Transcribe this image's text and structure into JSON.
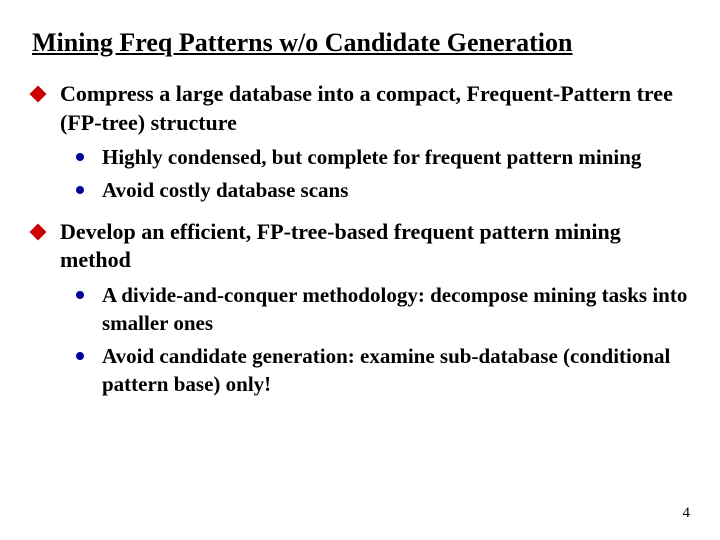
{
  "title": "Mining Freq Patterns w/o Candidate Generation",
  "bullets": [
    {
      "text": "Compress a large database into a compact, Frequent-Pattern tree (FP-tree) structure",
      "sub": [
        "Highly condensed, but complete for frequent pattern mining",
        "Avoid costly database scans"
      ]
    },
    {
      "text": "Develop an efficient, FP-tree-based frequent pattern mining method",
      "sub": [
        "A divide-and-conquer methodology: decompose mining tasks into smaller ones",
        "Avoid candidate generation: examine sub-database (conditional pattern base) only!"
      ]
    }
  ],
  "page_number": "4",
  "colors": {
    "diamond": "#cc0000",
    "dot": "#000099",
    "text": "#000000",
    "background": "#ffffff"
  },
  "fonts": {
    "title_size": 26,
    "level1_size": 22,
    "level2_size": 21,
    "weight": "bold",
    "family": "Times New Roman"
  }
}
